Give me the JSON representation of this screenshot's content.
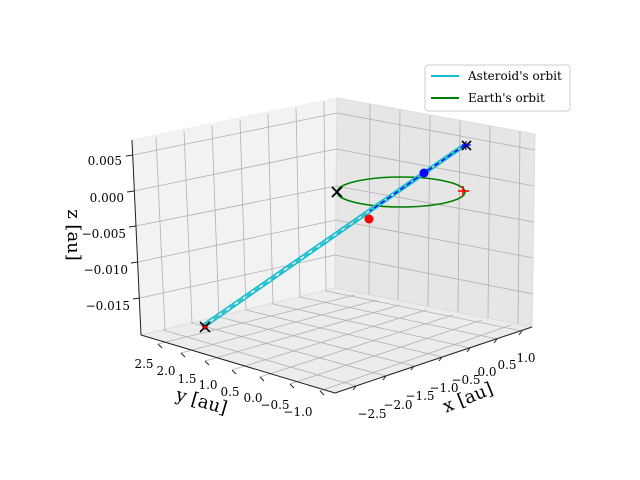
{
  "chart_data": {
    "type": "line3d",
    "title": "",
    "xlabel": "x [au]",
    "ylabel": "y [au]",
    "zlabel": "z [au]",
    "x_ticks": [
      "−2.5",
      "−2.0",
      "−1.5",
      "−1.0",
      "−0.5",
      "0.0",
      "0.5",
      "1.0"
    ],
    "y_ticks": [
      "2.5",
      "2.0",
      "1.5",
      "1.0",
      "0.5",
      "0.0",
      "−0.5",
      "−1.0"
    ],
    "z_ticks": [
      "0.005",
      "0.000",
      "−0.005",
      "−0.010",
      "−0.015"
    ],
    "xlim": [
      -2.9,
      1.3
    ],
    "ylim": [
      -1.3,
      2.8
    ],
    "zlim": [
      -0.018,
      0.008
    ],
    "grid": true,
    "legend_position": "top-right",
    "series": [
      {
        "name": "Asteroid's orbit",
        "color": "#17becf"
      },
      {
        "name": "Earth's orbit",
        "color": "#008000"
      }
    ],
    "markers": [
      {
        "label": "asteroid current position",
        "color": "#0000ff"
      },
      {
        "label": "earth current position",
        "color": "#ff0000"
      }
    ]
  }
}
